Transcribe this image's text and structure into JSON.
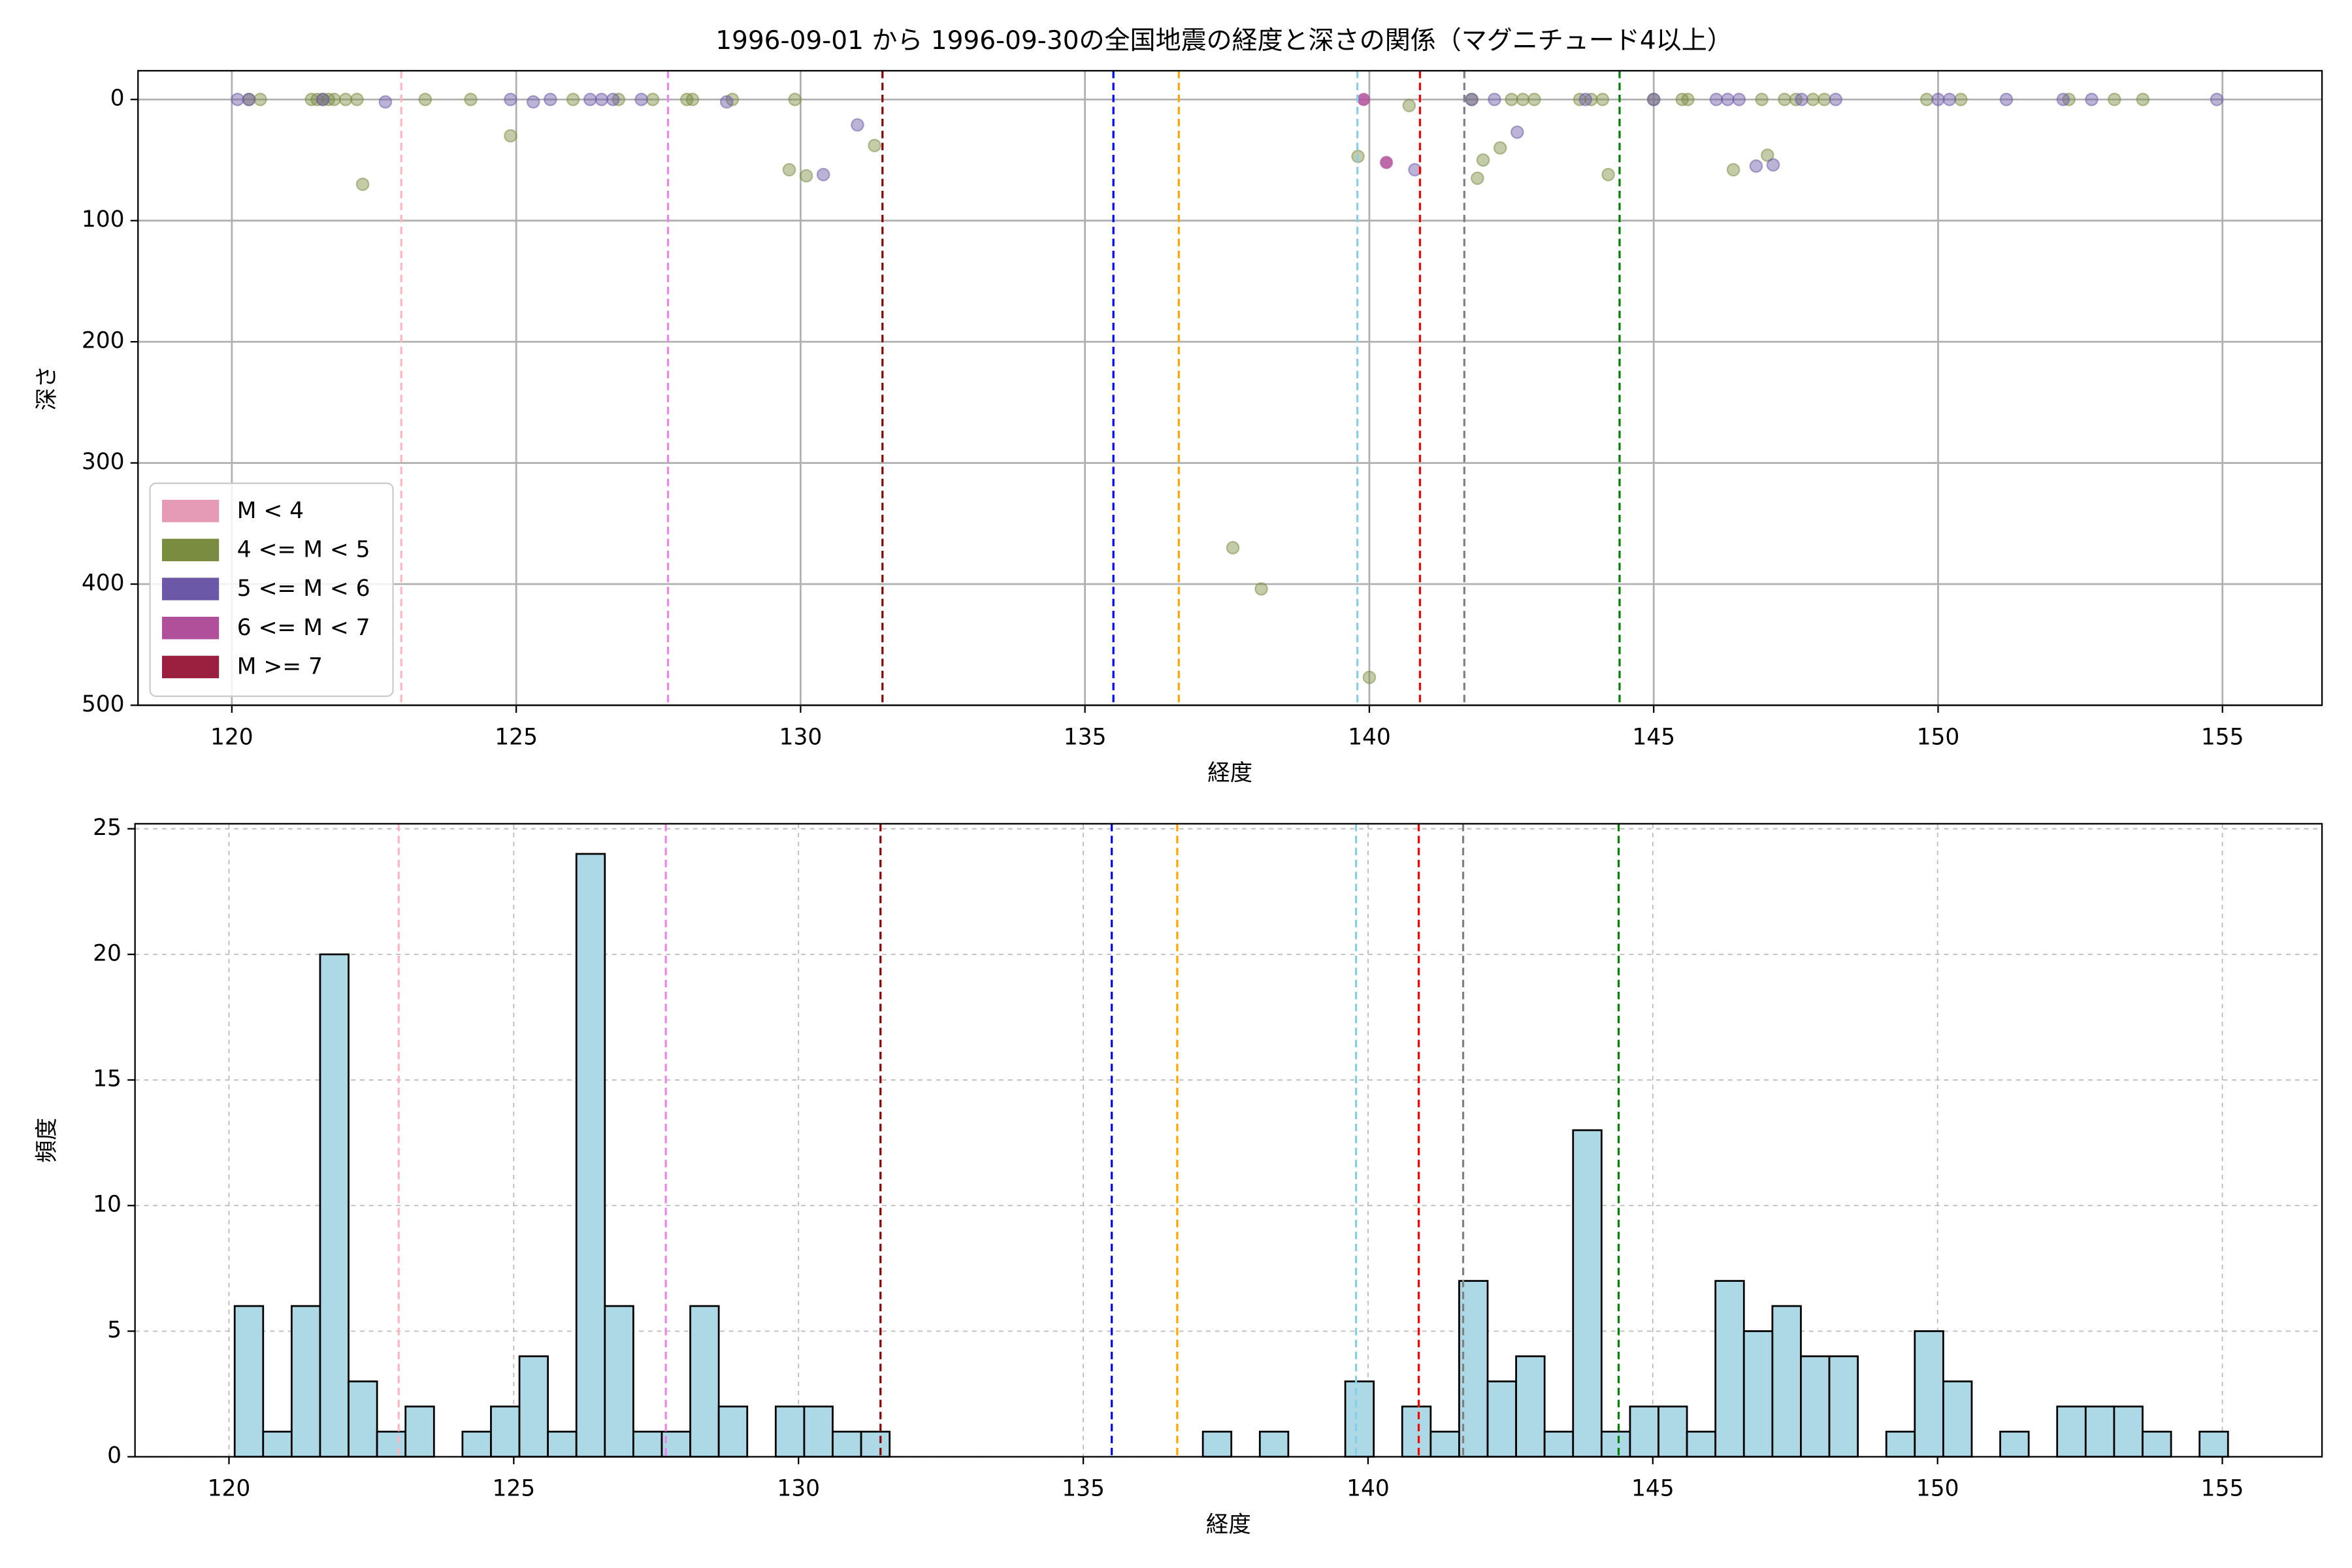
{
  "chart_data": [
    {
      "type": "scatter",
      "title": "1996-09-01 から 1996-09-30の全国地震の経度と深さの関係（マグニチュード4以上）",
      "x_label": "経度",
      "y_label": "深さ",
      "xlim": [
        118.35,
        156.75
      ],
      "ylim": [
        500,
        -23.7
      ],
      "xticks": [
        120,
        125,
        130,
        135,
        140,
        145,
        150,
        155
      ],
      "yticks": [
        0,
        100,
        200,
        300,
        400,
        500
      ],
      "grid": true,
      "grid_style": "solid",
      "legend": "lower left",
      "vlines": [
        {
          "x": 122.98,
          "color": "#ffb6c1"
        },
        {
          "x": 127.67,
          "color": "#ee82ee"
        },
        {
          "x": 131.44,
          "color": "#8b0000"
        },
        {
          "x": 135.5,
          "color": "blue"
        },
        {
          "x": 136.65,
          "color": "orange"
        },
        {
          "x": 139.79,
          "color": "#87ceeb"
        },
        {
          "x": 140.89,
          "color": "red"
        },
        {
          "x": 141.67,
          "color": "gray"
        },
        {
          "x": 144.4,
          "color": "green"
        }
      ],
      "series": [
        {
          "name": "M < 4",
          "color": "#e59ab6",
          "x": [],
          "values": []
        },
        {
          "name": "4 <= M < 5",
          "color": "#7a8c40",
          "x": [
            120.3,
            120.5,
            121.4,
            121.5,
            121.6,
            121.7,
            121.8,
            122.0,
            122.3,
            122.2,
            123.4,
            124.2,
            124.9,
            126.0,
            126.8,
            127.4,
            128.0,
            128.1,
            128.8,
            129.8,
            130.1,
            129.9,
            131.3,
            137.6,
            138.1,
            139.8,
            140.0,
            140.7,
            141.8,
            141.9,
            142.0,
            142.3,
            142.5,
            142.7,
            142.9,
            143.7,
            143.9,
            144.1,
            144.2,
            145.0,
            145.5,
            145.6,
            146.4,
            146.9,
            147.0,
            147.3,
            147.5,
            147.8,
            148.0,
            149.8,
            150.4,
            152.3,
            153.1,
            153.6
          ],
          "values": [
            0,
            0,
            0,
            0,
            0,
            0,
            0,
            0,
            70,
            0,
            0,
            0,
            30,
            0,
            0,
            0,
            0,
            0,
            0,
            58,
            63,
            0,
            38,
            370,
            404,
            47,
            477,
            5,
            0,
            65,
            50,
            40,
            0,
            0,
            0,
            0,
            0,
            0,
            62,
            0,
            0,
            0,
            58,
            0,
            46,
            0,
            0,
            0,
            0,
            0,
            0,
            0,
            0,
            0
          ]
        },
        {
          "name": "5 <= M < 6",
          "color": "#6b58a6",
          "x": [
            120.1,
            120.3,
            121.6,
            122.7,
            124.9,
            125.3,
            125.6,
            126.3,
            126.5,
            126.7,
            127.2,
            128.7,
            130.4,
            131.0,
            140.8,
            141.8,
            142.2,
            142.6,
            143.8,
            145.0,
            146.1,
            146.3,
            146.5,
            146.8,
            147.1,
            147.6,
            148.2,
            150.0,
            150.2,
            151.2,
            152.2,
            152.7,
            154.9
          ],
          "values": [
            0,
            0,
            0,
            2,
            0,
            2,
            0,
            0,
            0,
            0,
            0,
            2,
            62,
            21,
            58,
            0,
            0,
            27,
            0,
            0,
            0,
            0,
            0,
            55,
            54,
            0,
            0,
            0,
            0,
            0,
            0,
            0,
            0
          ]
        },
        {
          "name": "6 <= M < 7",
          "color": "#b0509a",
          "x": [
            139.9,
            140.3
          ],
          "values": [
            0,
            52
          ]
        },
        {
          "name": "M >= 7",
          "color": "#9b2040",
          "x": [],
          "values": []
        }
      ]
    },
    {
      "type": "histogram",
      "x_label": "経度",
      "y_label": "頻度",
      "xlim": [
        118.35,
        156.75
      ],
      "ylim": [
        0,
        25.2
      ],
      "xticks": [
        120,
        125,
        130,
        135,
        140,
        145,
        150,
        155
      ],
      "yticks": [
        0,
        5,
        10,
        15,
        20,
        25
      ],
      "grid": true,
      "grid_style": "dashed",
      "color": "#add8e6",
      "edgecolor": "#000000",
      "vlines": [
        {
          "x": 122.98,
          "color": "#ffb6c1"
        },
        {
          "x": 127.67,
          "color": "#ee82ee"
        },
        {
          "x": 131.44,
          "color": "#8b0000"
        },
        {
          "x": 135.5,
          "color": "blue"
        },
        {
          "x": 136.65,
          "color": "orange"
        },
        {
          "x": 139.79,
          "color": "#87ceeb"
        },
        {
          "x": 140.89,
          "color": "red"
        },
        {
          "x": 141.67,
          "color": "gray"
        },
        {
          "x": 144.4,
          "color": "green"
        }
      ],
      "bins": [
        120.1,
        120.6,
        121.1,
        121.6,
        122.1,
        122.6,
        123.1,
        123.6,
        124.1,
        124.6,
        125.1,
        125.6,
        126.1,
        126.6,
        127.1,
        127.6,
        128.1,
        128.6,
        129.1,
        129.6,
        130.1,
        130.6,
        131.1,
        131.6,
        132.1,
        132.6,
        133.1,
        133.6,
        134.1,
        134.6,
        135.1,
        135.6,
        136.1,
        136.6,
        137.1,
        137.6,
        138.1,
        138.6,
        139.1,
        139.6,
        140.1,
        140.6,
        141.1,
        141.6,
        142.1,
        142.6,
        143.1,
        143.6,
        144.1,
        144.6,
        145.1,
        145.6,
        146.1,
        146.6,
        147.1,
        147.6,
        148.1,
        148.6,
        149.1,
        149.6,
        150.1,
        150.6,
        151.1,
        151.6,
        152.1,
        152.6,
        153.1,
        153.6,
        154.1,
        154.6,
        155.1
      ],
      "values": [
        6,
        1,
        6,
        20,
        3,
        1,
        2,
        0,
        1,
        2,
        4,
        1,
        24,
        6,
        1,
        1,
        6,
        2,
        0,
        2,
        2,
        1,
        1,
        0,
        0,
        0,
        0,
        0,
        0,
        0,
        0,
        0,
        0,
        0,
        1,
        0,
        1,
        0,
        0,
        3,
        0,
        2,
        1,
        7,
        3,
        4,
        1,
        13,
        1,
        2,
        2,
        1,
        7,
        5,
        6,
        4,
        4,
        0,
        1,
        5,
        3,
        0,
        1,
        0,
        2,
        2,
        2,
        1,
        0,
        1
      ]
    }
  ]
}
